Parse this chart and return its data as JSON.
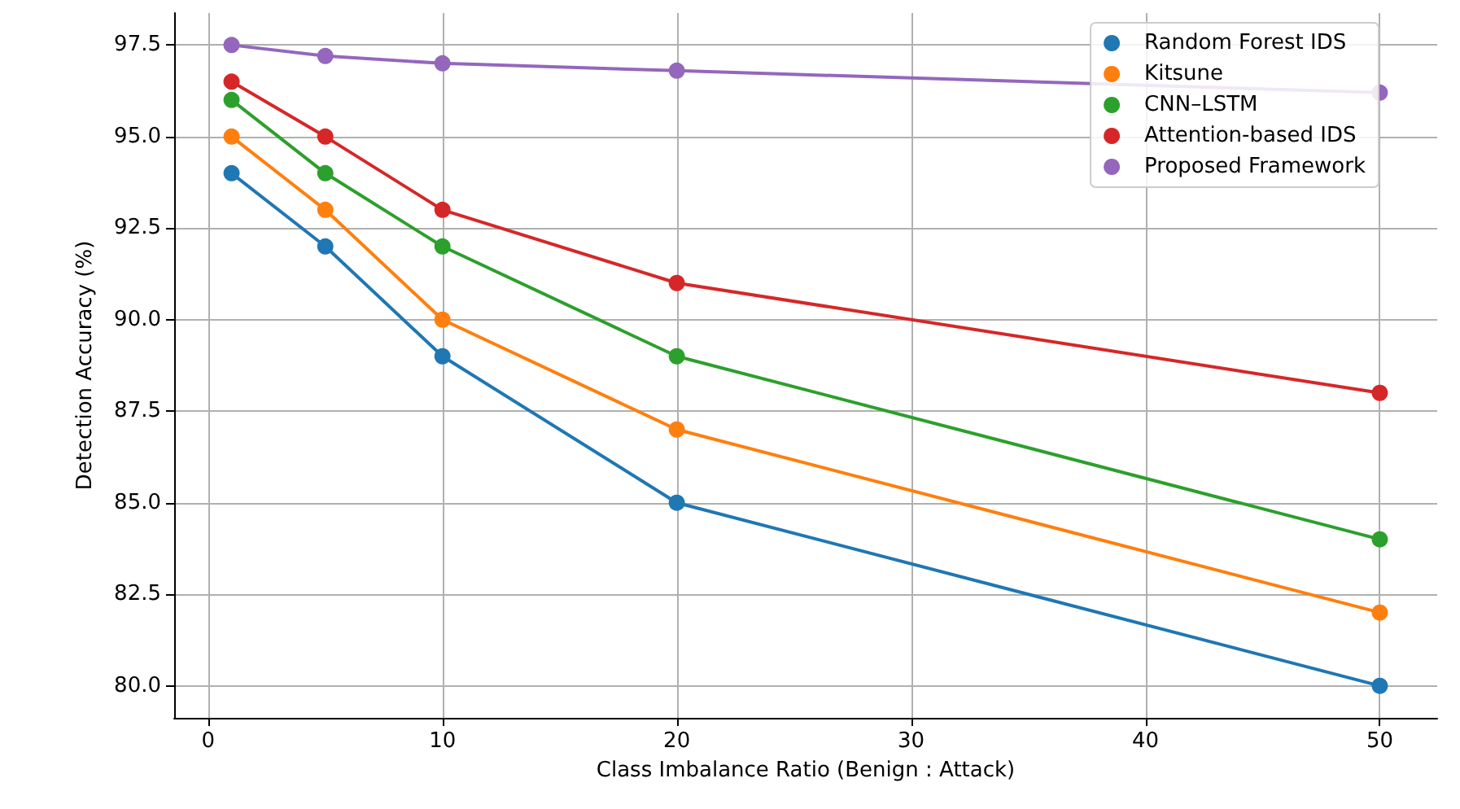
{
  "chart_data": {
    "type": "line",
    "xlabel": "Class Imbalance Ratio (Benign : Attack)",
    "ylabel": "Detection Accuracy (%)",
    "x": [
      1,
      5,
      10,
      20,
      50
    ],
    "series": [
      {
        "name": "Random Forest IDS",
        "color": "#1f77b4",
        "values": [
          94,
          92,
          89,
          85,
          80
        ]
      },
      {
        "name": "Kitsune",
        "color": "#ff7f0e",
        "values": [
          95,
          93,
          90,
          87,
          82
        ]
      },
      {
        "name": "CNN–LSTM",
        "color": "#2ca02c",
        "values": [
          96,
          94,
          92,
          89,
          84
        ]
      },
      {
        "name": "Attention-based IDS",
        "color": "#d62728",
        "values": [
          96.5,
          95,
          93,
          91,
          88
        ]
      },
      {
        "name": "Proposed Framework",
        "color": "#9467bd",
        "values": [
          97.5,
          97.2,
          97.0,
          96.8,
          96.2
        ]
      }
    ],
    "xlim": [
      -1.45,
      52.45
    ],
    "xticks": [
      0,
      10,
      20,
      30,
      40,
      50
    ],
    "ylim": [
      79.125,
      98.375
    ],
    "yticks": [
      {
        "value": 80,
        "label": "80.0"
      },
      {
        "value": 82.5,
        "label": "82.5"
      },
      {
        "value": 85,
        "label": "85.0"
      },
      {
        "value": 87.5,
        "label": "87.5"
      },
      {
        "value": 90,
        "label": "90.0"
      },
      {
        "value": 92.5,
        "label": "92.5"
      },
      {
        "value": 95,
        "label": "95.0"
      },
      {
        "value": 97.5,
        "label": "97.5"
      }
    ],
    "grid": true,
    "legend": "top right",
    "marker": "circle",
    "line_style": "solid"
  }
}
